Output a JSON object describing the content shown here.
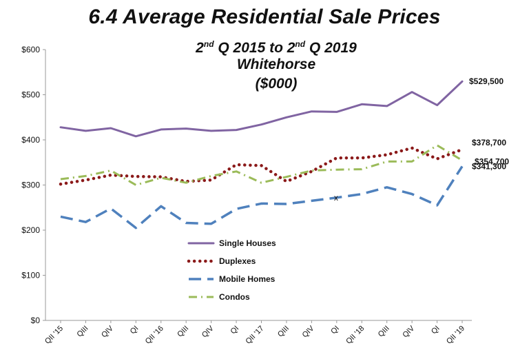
{
  "chart_data": {
    "type": "line",
    "title": "6.4 Average Residential Sale Prices",
    "subtitle_range_start": "2",
    "subtitle_sup1": "nd",
    "subtitle_mid": " Q 2015 to 2",
    "subtitle_sup2": "nd",
    "subtitle_end": " Q 2019",
    "subtitle_location": "Whitehorse",
    "subtitle_units": "($000)",
    "categories": [
      "QII '15",
      "QIII",
      "QIV",
      "QI",
      "QII '16",
      "QIII",
      "QIV",
      "QI",
      "QII '17",
      "QIII",
      "QIV",
      "QI",
      "QII '18",
      "QIII",
      "QIV",
      "QI",
      "QII '19"
    ],
    "y_tick_labels": [
      "$0",
      "$100",
      "$200",
      "$300",
      "$400",
      "$500",
      "$600"
    ],
    "ylim": [
      0,
      600
    ],
    "series": [
      {
        "name": "Single Houses",
        "color": "#8064a2",
        "style": "solid",
        "values": [
          428,
          420,
          426,
          408,
          423,
          425,
          420,
          422,
          434,
          450,
          463,
          462,
          479,
          475,
          506,
          477,
          529.5
        ]
      },
      {
        "name": "Duplexes",
        "color": "#8b1a1a",
        "style": "dotted",
        "values": [
          302,
          311,
          322,
          319,
          318,
          308,
          311,
          345,
          343,
          308,
          330,
          360,
          360,
          367,
          382,
          358,
          378.7
        ]
      },
      {
        "name": "Mobile Homes",
        "color": "#4f81bd",
        "style": "dashed",
        "values": [
          230,
          218,
          248,
          205,
          253,
          216,
          214,
          247,
          259,
          258,
          265,
          272,
          280,
          295,
          280,
          255,
          341.3
        ]
      },
      {
        "name": "Condos",
        "color": "#9bbb59",
        "style": "dashdot",
        "values": [
          313,
          320,
          332,
          300,
          316,
          305,
          320,
          330,
          305,
          318,
          332,
          334,
          335,
          352,
          352,
          388,
          354.7
        ]
      }
    ],
    "annotations": [
      "$529,500",
      "$378,700",
      "$354,700",
      "$341,300"
    ],
    "stray_marker": "x",
    "legend_position": "center-bottom"
  }
}
